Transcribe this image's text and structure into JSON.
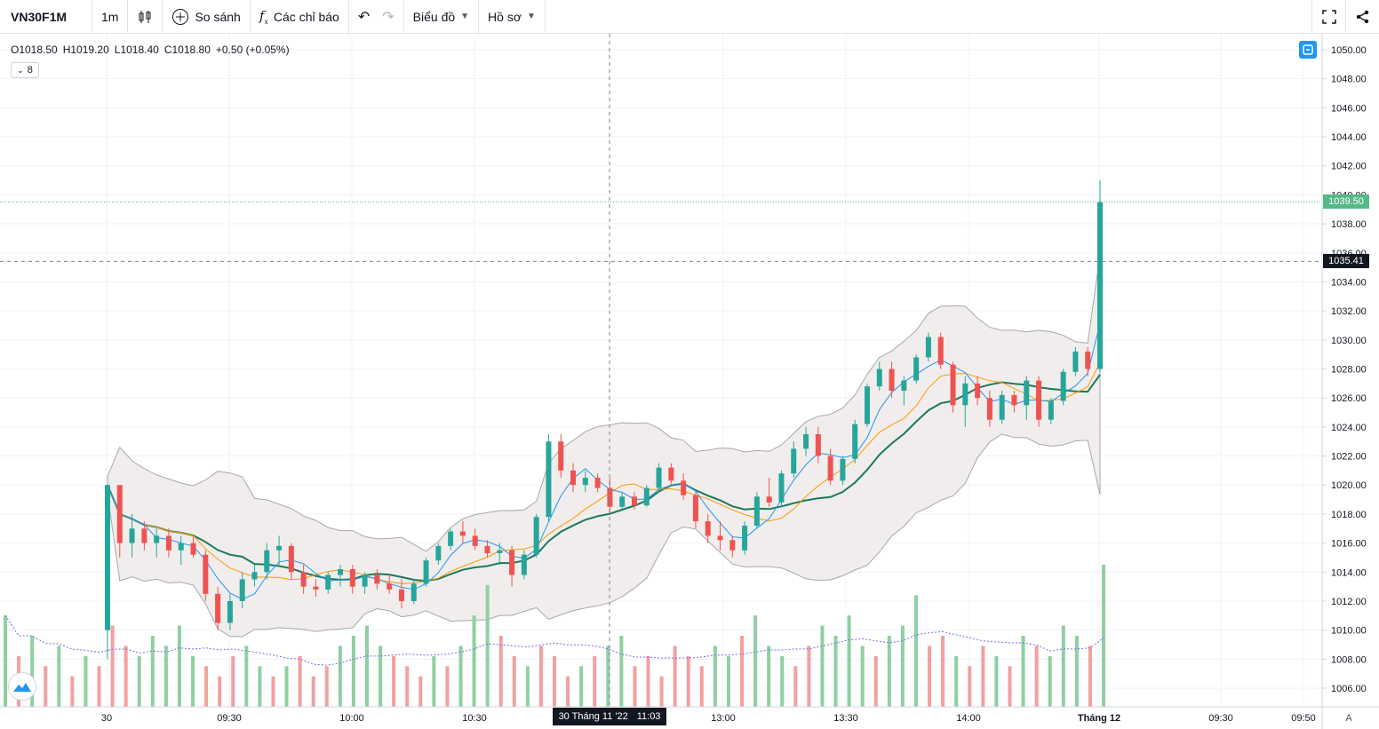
{
  "toolbar": {
    "symbol": "VN30F1M",
    "interval": "1m",
    "compare_label": "So sánh",
    "indicators_label": "Các chỉ báo",
    "chart_menu_label": "Biểu đồ",
    "profile_menu_label": "Hồ sơ"
  },
  "legend": {
    "open": "O1018.50",
    "high": "H1019.20",
    "low": "L1018.40",
    "close": "C1018.80",
    "change": "+0.50 (+0.05%)",
    "indicator_count": "8"
  },
  "price_axis": {
    "ticks": [
      "1050.00",
      "1048.00",
      "1046.00",
      "1044.00",
      "1042.00",
      "1040.00",
      "1038.00",
      "1036.00",
      "1034.00",
      "1032.00",
      "1030.00",
      "1028.00",
      "1026.00",
      "1024.00",
      "1022.00",
      "1020.00",
      "1018.00",
      "1016.00",
      "1014.00",
      "1012.00",
      "1010.00",
      "1008.00",
      "1006.00"
    ],
    "last_price_label": "1039.50",
    "crosshair_price_label": "1035.41"
  },
  "time_axis": {
    "ticks": [
      "30",
      "09:30",
      "10:00",
      "10:30",
      "13:00",
      "13:30",
      "14:00",
      "Tháng 12",
      "09:30",
      "09:50"
    ],
    "crosshair_date": "30 Tháng 11 '22",
    "crosshair_time": "11:03"
  },
  "auto_scale_label": "A",
  "colors": {
    "up": "#26a69a",
    "down": "#ef5350",
    "ma_fast": "#2196f3",
    "ma_mid": "#ff9800",
    "ma_slow": "#1b7a5a",
    "band_fill": "#f3eeee",
    "volume_up": "#8fd0a0",
    "volume_down": "#f4a0a0",
    "last_price": "#53b987"
  },
  "chart_data": {
    "type": "candlestick",
    "symbol": "VN30F1M",
    "ylim": [
      1005,
      1051
    ],
    "candles": [
      {
        "o": 1010,
        "h": 1020,
        "l": 1008,
        "c": 1020
      },
      {
        "o": 1020,
        "h": 1020,
        "l": 1015,
        "c": 1016
      },
      {
        "o": 1016,
        "h": 1018,
        "l": 1015,
        "c": 1017
      },
      {
        "o": 1017,
        "h": 1017.5,
        "l": 1015.5,
        "c": 1016
      },
      {
        "o": 1016,
        "h": 1017,
        "l": 1015,
        "c": 1016.5
      },
      {
        "o": 1016.5,
        "h": 1017,
        "l": 1015,
        "c": 1015.5
      },
      {
        "o": 1015.5,
        "h": 1016.5,
        "l": 1014.5,
        "c": 1016
      },
      {
        "o": 1016,
        "h": 1016.5,
        "l": 1015,
        "c": 1015.2
      },
      {
        "o": 1015.2,
        "h": 1015.5,
        "l": 1012,
        "c": 1012.5
      },
      {
        "o": 1012.5,
        "h": 1013,
        "l": 1010,
        "c": 1010.5
      },
      {
        "o": 1010.5,
        "h": 1012.5,
        "l": 1010,
        "c": 1012
      },
      {
        "o": 1012,
        "h": 1014,
        "l": 1011.5,
        "c": 1013.5
      },
      {
        "o": 1013.5,
        "h": 1014.5,
        "l": 1013,
        "c": 1014
      },
      {
        "o": 1014,
        "h": 1016,
        "l": 1013.5,
        "c": 1015.5
      },
      {
        "o": 1015.5,
        "h": 1016.5,
        "l": 1014.5,
        "c": 1015.8
      },
      {
        "o": 1015.8,
        "h": 1016,
        "l": 1013.5,
        "c": 1014
      },
      {
        "o": 1014,
        "h": 1014.5,
        "l": 1012.5,
        "c": 1013
      },
      {
        "o": 1013,
        "h": 1013.5,
        "l": 1012.3,
        "c": 1012.8
      },
      {
        "o": 1012.8,
        "h": 1014,
        "l": 1012.5,
        "c": 1013.8
      },
      {
        "o": 1013.8,
        "h": 1014.5,
        "l": 1013,
        "c": 1014.2
      },
      {
        "o": 1014.2,
        "h": 1014.5,
        "l": 1012.5,
        "c": 1013
      },
      {
        "o": 1013,
        "h": 1014,
        "l": 1012.5,
        "c": 1013.8
      },
      {
        "o": 1013.8,
        "h": 1014.2,
        "l": 1012.8,
        "c": 1013.2
      },
      {
        "o": 1013.2,
        "h": 1013.8,
        "l": 1012.5,
        "c": 1012.8
      },
      {
        "o": 1012.8,
        "h": 1013.5,
        "l": 1011.5,
        "c": 1012
      },
      {
        "o": 1012,
        "h": 1013.5,
        "l": 1011.8,
        "c": 1013.2
      },
      {
        "o": 1013.2,
        "h": 1015,
        "l": 1013,
        "c": 1014.8
      },
      {
        "o": 1014.8,
        "h": 1016,
        "l": 1014.5,
        "c": 1015.8
      },
      {
        "o": 1015.8,
        "h": 1017,
        "l": 1015.5,
        "c": 1016.8
      },
      {
        "o": 1016.8,
        "h": 1017.5,
        "l": 1016,
        "c": 1016.5
      },
      {
        "o": 1016.5,
        "h": 1017,
        "l": 1015.5,
        "c": 1015.8
      },
      {
        "o": 1015.8,
        "h": 1016.2,
        "l": 1015,
        "c": 1015.3
      },
      {
        "o": 1015.3,
        "h": 1016,
        "l": 1014.5,
        "c": 1015.5
      },
      {
        "o": 1015.5,
        "h": 1015.8,
        "l": 1013,
        "c": 1013.8
      },
      {
        "o": 1013.8,
        "h": 1015.5,
        "l": 1013.5,
        "c": 1015.2
      },
      {
        "o": 1015.2,
        "h": 1018,
        "l": 1015,
        "c": 1017.8
      },
      {
        "o": 1017.8,
        "h": 1023.5,
        "l": 1017.5,
        "c": 1023
      },
      {
        "o": 1023,
        "h": 1023.5,
        "l": 1020.5,
        "c": 1021
      },
      {
        "o": 1021,
        "h": 1021.5,
        "l": 1019.5,
        "c": 1020
      },
      {
        "o": 1020,
        "h": 1021,
        "l": 1019.5,
        "c": 1020.5
      },
      {
        "o": 1020.5,
        "h": 1020.8,
        "l": 1019.5,
        "c": 1019.8
      },
      {
        "o": 1019.8,
        "h": 1020.5,
        "l": 1018,
        "c": 1018.5
      },
      {
        "o": 1018.5,
        "h": 1019.5,
        "l": 1018.2,
        "c": 1019.2
      },
      {
        "o": 1019.2,
        "h": 1019.5,
        "l": 1018.3,
        "c": 1018.6
      },
      {
        "o": 1018.6,
        "h": 1020,
        "l": 1018.5,
        "c": 1019.8
      },
      {
        "o": 1019.8,
        "h": 1021.5,
        "l": 1019.5,
        "c": 1021.2
      },
      {
        "o": 1021.2,
        "h": 1021.5,
        "l": 1020,
        "c": 1020.3
      },
      {
        "o": 1020.3,
        "h": 1020.8,
        "l": 1019,
        "c": 1019.3
      },
      {
        "o": 1019.3,
        "h": 1019.5,
        "l": 1017,
        "c": 1017.5
      },
      {
        "o": 1017.5,
        "h": 1018,
        "l": 1016,
        "c": 1016.5
      },
      {
        "o": 1016.5,
        "h": 1017.5,
        "l": 1015.5,
        "c": 1016.2
      },
      {
        "o": 1016.2,
        "h": 1016.5,
        "l": 1015,
        "c": 1015.5
      },
      {
        "o": 1015.5,
        "h": 1017.5,
        "l": 1015.2,
        "c": 1017.2
      },
      {
        "o": 1017.2,
        "h": 1019.5,
        "l": 1017,
        "c": 1019.2
      },
      {
        "o": 1019.2,
        "h": 1020.5,
        "l": 1018.5,
        "c": 1018.8
      },
      {
        "o": 1018.8,
        "h": 1021,
        "l": 1018.5,
        "c": 1020.8
      },
      {
        "o": 1020.8,
        "h": 1023,
        "l": 1020.5,
        "c": 1022.5
      },
      {
        "o": 1022.5,
        "h": 1024,
        "l": 1022,
        "c": 1023.5
      },
      {
        "o": 1023.5,
        "h": 1024,
        "l": 1021.5,
        "c": 1022
      },
      {
        "o": 1022,
        "h": 1022.5,
        "l": 1020,
        "c": 1020.3
      },
      {
        "o": 1020.3,
        "h": 1022,
        "l": 1020,
        "c": 1021.8
      },
      {
        "o": 1021.8,
        "h": 1024.5,
        "l": 1021.5,
        "c": 1024.2
      },
      {
        "o": 1024.2,
        "h": 1027,
        "l": 1024,
        "c": 1026.8
      },
      {
        "o": 1026.8,
        "h": 1028.5,
        "l": 1026.5,
        "c": 1028
      },
      {
        "o": 1028,
        "h": 1028.5,
        "l": 1026,
        "c": 1026.5
      },
      {
        "o": 1026.5,
        "h": 1027.5,
        "l": 1025.5,
        "c": 1027.2
      },
      {
        "o": 1027.2,
        "h": 1029,
        "l": 1027,
        "c": 1028.8
      },
      {
        "o": 1028.8,
        "h": 1030.5,
        "l": 1028.5,
        "c": 1030.2
      },
      {
        "o": 1030.2,
        "h": 1030.5,
        "l": 1028,
        "c": 1028.3
      },
      {
        "o": 1028.3,
        "h": 1028.5,
        "l": 1025,
        "c": 1025.5
      },
      {
        "o": 1025.5,
        "h": 1027.5,
        "l": 1024,
        "c": 1027
      },
      {
        "o": 1027,
        "h": 1027.5,
        "l": 1025.5,
        "c": 1026
      },
      {
        "o": 1026,
        "h": 1026.5,
        "l": 1024,
        "c": 1024.5
      },
      {
        "o": 1024.5,
        "h": 1026.5,
        "l": 1024.2,
        "c": 1026.2
      },
      {
        "o": 1026.2,
        "h": 1026.5,
        "l": 1025,
        "c": 1025.5
      },
      {
        "o": 1025.5,
        "h": 1027.5,
        "l": 1024.5,
        "c": 1027.2
      },
      {
        "o": 1027.2,
        "h": 1027.5,
        "l": 1024,
        "c": 1024.5
      },
      {
        "o": 1024.5,
        "h": 1026,
        "l": 1024.2,
        "c": 1025.8
      },
      {
        "o": 1025.8,
        "h": 1028,
        "l": 1025.5,
        "c": 1027.8
      },
      {
        "o": 1027.8,
        "h": 1029.5,
        "l": 1027.5,
        "c": 1029.2
      },
      {
        "o": 1029.2,
        "h": 1029.5,
        "l": 1027.5,
        "c": 1028
      },
      {
        "o": 1028,
        "h": 1041,
        "l": 1027.8,
        "c": 1039.5
      }
    ],
    "volume": [
      9,
      5,
      7,
      4,
      6,
      3,
      5,
      4,
      8,
      6,
      5,
      7,
      6,
      8,
      5,
      4,
      3,
      5,
      6,
      4,
      3,
      4,
      5,
      3,
      4,
      6,
      7,
      8,
      6,
      5,
      4,
      3,
      5,
      4,
      6,
      9,
      12,
      7,
      5,
      4,
      6,
      5,
      3,
      4,
      5,
      6,
      7,
      4,
      5,
      3,
      6,
      5,
      4,
      6,
      5,
      7,
      9,
      6,
      5,
      4,
      6,
      8,
      7,
      9,
      6,
      5,
      7,
      8,
      11,
      6,
      7,
      5,
      4,
      6,
      5,
      4,
      7,
      6,
      5,
      8,
      7,
      6,
      14
    ],
    "price_lines": {
      "last": 1039.5,
      "crosshair": 1035.41
    }
  }
}
